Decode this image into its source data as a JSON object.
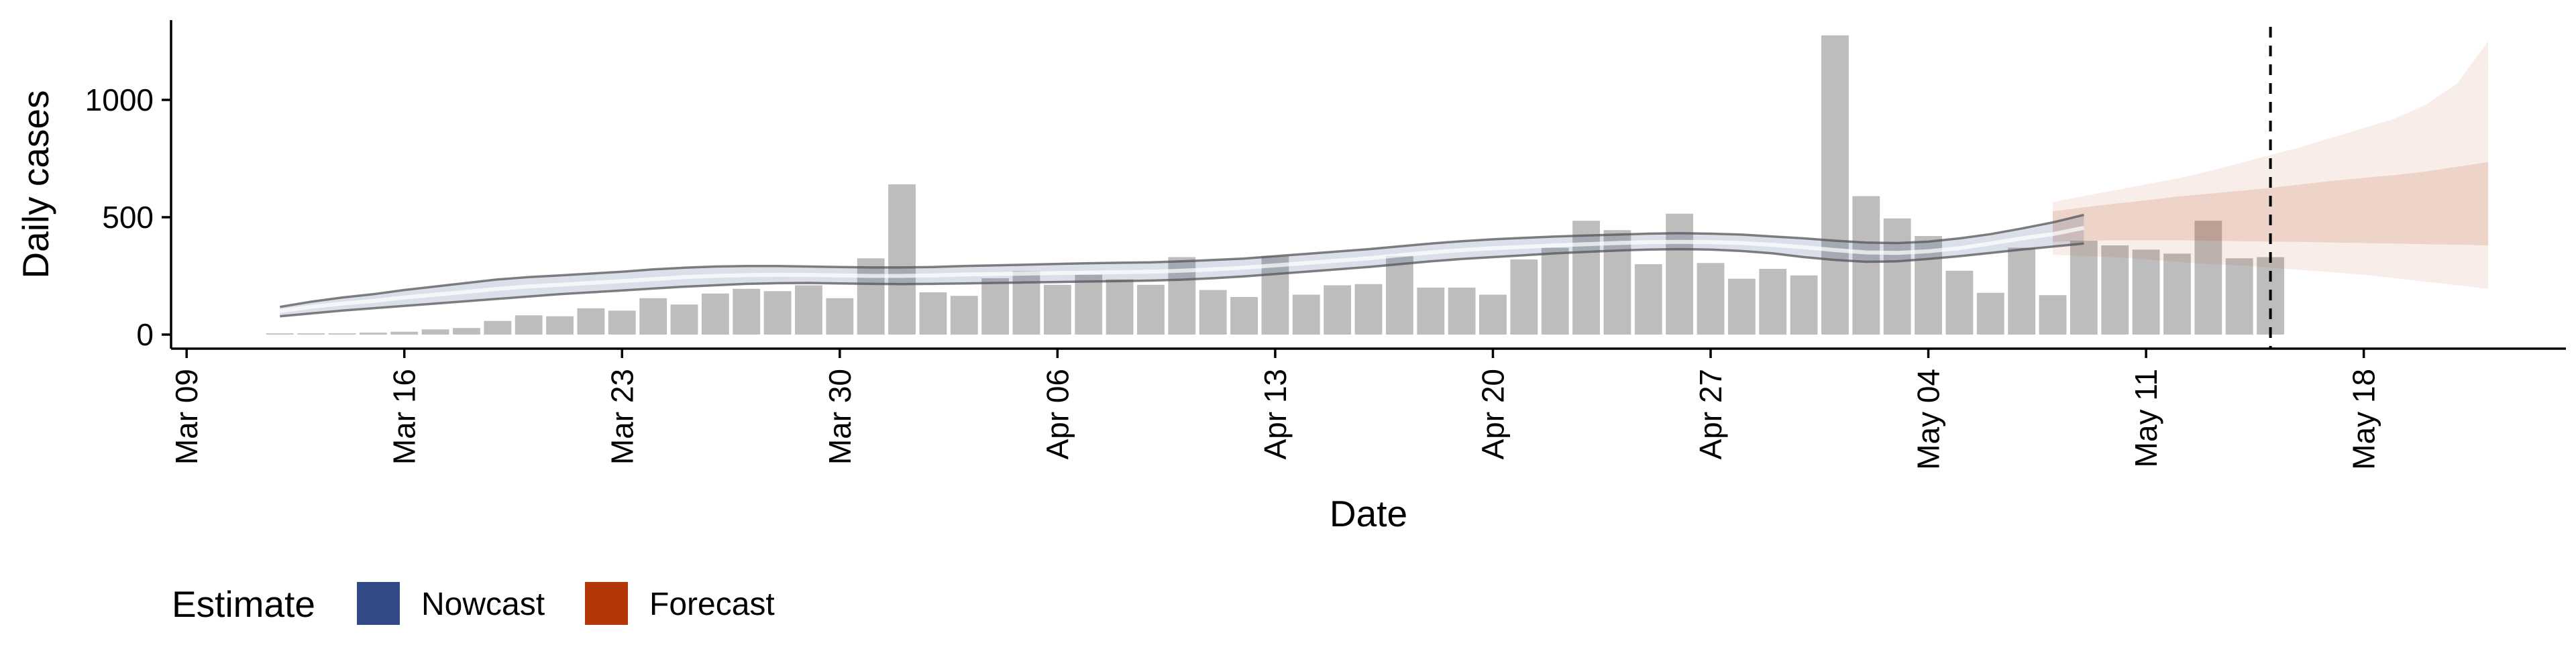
{
  "chart_data": {
    "type": "bar",
    "xlabel": "Date",
    "ylabel": "Daily cases",
    "x_ticks": [
      "Mar 09",
      "Mar 16",
      "Mar 23",
      "Mar 30",
      "Apr 06",
      "Apr 13",
      "Apr 20",
      "Apr 27",
      "May 04",
      "May 11",
      "May 18"
    ],
    "x_tick_days": [
      0,
      7,
      14,
      21,
      28,
      35,
      42,
      49,
      56,
      63,
      70
    ],
    "xlim_days": [
      -0.5,
      76.5
    ],
    "y_ticks": [
      0,
      500,
      1000
    ],
    "ylim": [
      -60,
      1340
    ],
    "bars": {
      "start_date": "Mar 12",
      "color": "#bdbdbd",
      "values": [
        5,
        5,
        5,
        8,
        12,
        22,
        28,
        58,
        82,
        78,
        112,
        102,
        155,
        128,
        175,
        195,
        185,
        210,
        155,
        325,
        640,
        180,
        165,
        240,
        270,
        212,
        255,
        235,
        212,
        330,
        190,
        160,
        335,
        170,
        210,
        215,
        335,
        200,
        200,
        170,
        320,
        370,
        485,
        445,
        300,
        515,
        305,
        238,
        280,
        252,
        1275,
        590,
        495,
        420,
        272,
        178,
        370,
        168,
        400,
        380,
        362,
        345,
        485,
        325,
        330
      ]
    },
    "reference_line": {
      "date": "May 15",
      "day": 67,
      "style": "dashed",
      "color": "#000000"
    },
    "series": [
      {
        "name": "Nowcast",
        "color": "#334b85",
        "start_date": "Mar 12",
        "median": [
          100,
          118,
          132,
          143,
          158,
          170,
          182,
          195,
          205,
          212,
          220,
          228,
          236,
          245,
          250,
          253,
          255,
          254,
          252,
          250,
          250,
          252,
          256,
          258,
          260,
          262,
          264,
          266,
          268,
          272,
          278,
          285,
          295,
          305,
          315,
          325,
          338,
          350,
          360,
          368,
          374,
          380,
          385,
          390,
          394,
          395,
          394,
          390,
          382,
          372,
          360,
          350,
          348,
          355,
          368,
          388,
          410,
          428,
          455
        ],
        "lower90": [
          78,
          90,
          102,
          112,
          122,
          132,
          142,
          152,
          162,
          172,
          180,
          188,
          196,
          204,
          210,
          216,
          219,
          220,
          218,
          216,
          215,
          216,
          218,
          220,
          222,
          224,
          226,
          228,
          230,
          234,
          240,
          248,
          258,
          268,
          278,
          288,
          300,
          312,
          322,
          330,
          338,
          346,
          352,
          358,
          362,
          364,
          362,
          356,
          346,
          330,
          318,
          310,
          312,
          322,
          334,
          348,
          362,
          375,
          388
        ],
        "upper90": [
          118,
          140,
          158,
          172,
          190,
          205,
          220,
          235,
          245,
          252,
          260,
          268,
          278,
          285,
          290,
          292,
          292,
          290,
          288,
          286,
          286,
          288,
          292,
          295,
          298,
          301,
          304,
          306,
          308,
          312,
          318,
          324,
          334,
          344,
          354,
          364,
          376,
          388,
          398,
          406,
          412,
          418,
          422,
          426,
          430,
          432,
          430,
          426,
          418,
          410,
          400,
          392,
          390,
          396,
          410,
          428,
          452,
          478,
          510
        ]
      },
      {
        "name": "Forecast",
        "color": "#b33707",
        "start_date": "May 08",
        "median": [
          460,
          470,
          478,
          485,
          488,
          490,
          495,
          500,
          508,
          515,
          525,
          535,
          545,
          550,
          555
        ],
        "lower50": [
          395,
          400,
          402,
          402,
          402,
          400,
          398,
          396,
          395,
          392,
          390,
          388,
          385,
          383,
          380
        ],
        "upper50": [
          525,
          542,
          558,
          572,
          588,
          600,
          612,
          625,
          640,
          655,
          668,
          680,
          695,
          715,
          735
        ],
        "lower90": [
          340,
          335,
          330,
          320,
          310,
          300,
          295,
          285,
          275,
          265,
          255,
          240,
          225,
          210,
          195
        ],
        "upper90": [
          565,
          590,
          615,
          640,
          665,
          695,
          730,
          765,
          800,
          840,
          880,
          920,
          980,
          1070,
          1250
        ]
      }
    ],
    "legend": {
      "title": "Estimate",
      "position": "bottom-left",
      "items": [
        {
          "label": "Nowcast",
          "color": "#334b85"
        },
        {
          "label": "Forecast",
          "color": "#b33707"
        }
      ]
    },
    "grid": false
  }
}
